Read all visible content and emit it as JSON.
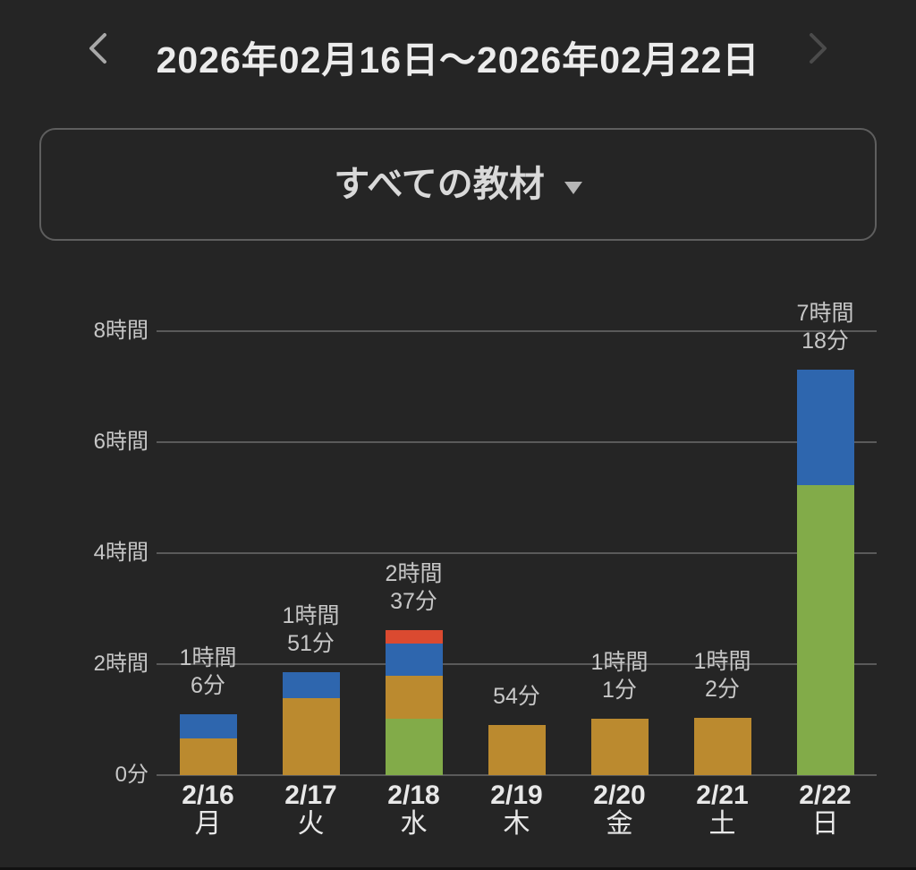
{
  "header": {
    "title": "2026年02月16日〜2026年02月22日"
  },
  "filter": {
    "label": "すべての教材"
  },
  "chart_data": {
    "type": "bar",
    "stacked": true,
    "unit": "minutes",
    "ylim": [
      0,
      480
    ],
    "grid": true,
    "y_ticks": [
      {
        "minutes": 0,
        "label": "0分"
      },
      {
        "minutes": 120,
        "label": "2時間"
      },
      {
        "minutes": 240,
        "label": "4時間"
      },
      {
        "minutes": 360,
        "label": "6時間"
      },
      {
        "minutes": 480,
        "label": "8時間"
      }
    ],
    "series_colors": {
      "yellow": "#BB8A2F",
      "blue": "#2E66AE",
      "green": "#82AB49",
      "red": "#DB4A30"
    },
    "bars": [
      {
        "date": "2/16",
        "weekday": "月",
        "total_minutes": 66,
        "total_label": "1時間6分",
        "label_lines": [
          "1時間",
          "6分"
        ],
        "segments": [
          {
            "series": "yellow",
            "minutes": 40
          },
          {
            "series": "blue",
            "minutes": 26
          }
        ]
      },
      {
        "date": "2/17",
        "weekday": "火",
        "total_minutes": 111,
        "total_label": "1時間51分",
        "label_lines": [
          "1時間",
          "51分"
        ],
        "segments": [
          {
            "series": "yellow",
            "minutes": 83
          },
          {
            "series": "blue",
            "minutes": 28
          }
        ]
      },
      {
        "date": "2/18",
        "weekday": "水",
        "total_minutes": 157,
        "total_label": "2時間37分",
        "label_lines": [
          "2時間",
          "37分"
        ],
        "segments": [
          {
            "series": "green",
            "minutes": 61
          },
          {
            "series": "yellow",
            "minutes": 46
          },
          {
            "series": "blue",
            "minutes": 35
          },
          {
            "series": "red",
            "minutes": 15
          }
        ]
      },
      {
        "date": "2/19",
        "weekday": "木",
        "total_minutes": 54,
        "total_label": "54分",
        "label_lines": [
          "54分"
        ],
        "segments": [
          {
            "series": "yellow",
            "minutes": 54
          }
        ]
      },
      {
        "date": "2/20",
        "weekday": "金",
        "total_minutes": 61,
        "total_label": "1時間1分",
        "label_lines": [
          "1時間",
          "1分"
        ],
        "segments": [
          {
            "series": "yellow",
            "minutes": 61
          }
        ]
      },
      {
        "date": "2/21",
        "weekday": "土",
        "total_minutes": 62,
        "total_label": "1時間2分",
        "label_lines": [
          "1時間",
          "2分"
        ],
        "segments": [
          {
            "series": "yellow",
            "minutes": 62
          }
        ]
      },
      {
        "date": "2/22",
        "weekday": "日",
        "total_minutes": 438,
        "total_label": "7時間18分",
        "label_lines": [
          "7時間",
          "18分"
        ],
        "segments": [
          {
            "series": "green",
            "minutes": 314
          },
          {
            "series": "blue",
            "minutes": 124
          }
        ]
      }
    ]
  },
  "colors": {
    "background": "#252525",
    "title_text": "#ECECEC",
    "muted_text": "#C7C7C7",
    "axis_text": "#E8E8E8",
    "grid_line": "#5A5A5A",
    "dropdown_border": "#5E5E5E",
    "prev_chevron": "#A8A8A8",
    "next_chevron": "#4B4B4B"
  }
}
